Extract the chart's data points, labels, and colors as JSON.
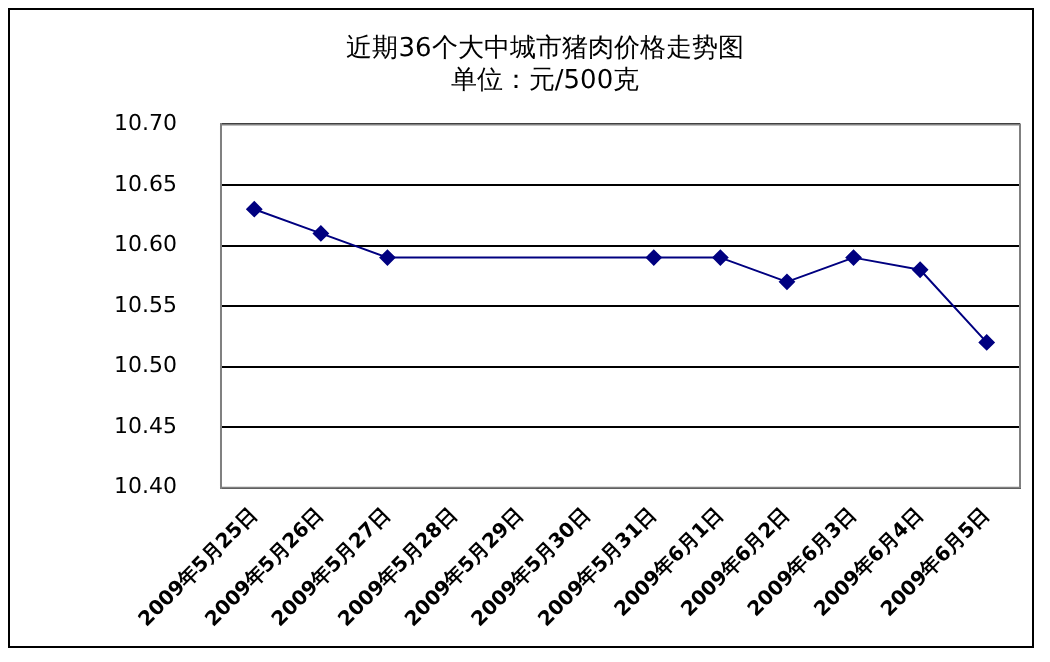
{
  "chart_data": {
    "type": "line",
    "title": "近期36个大中城市猪肉价格走势图",
    "subtitle": "单位：元/500克",
    "categories": [
      "2009年5月25日",
      "2009年5月26日",
      "2009年5月27日",
      "2009年5月28日",
      "2009年5月29日",
      "2009年5月30日",
      "2009年5月31日",
      "2009年6月1日",
      "2009年6月2日",
      "2009年6月3日",
      "2009年6月4日",
      "2009年6月5日"
    ],
    "values": [
      10.63,
      10.61,
      10.59,
      null,
      null,
      null,
      10.59,
      10.59,
      10.57,
      10.59,
      10.58,
      10.52
    ],
    "color": "#000080",
    "marker": "diamond",
    "line_style": "solid",
    "grid": "y",
    "legend": false,
    "ylim": [
      10.4,
      10.7
    ],
    "yticks": [
      {
        "value": 10.4,
        "label": "10.40"
      },
      {
        "value": 10.45,
        "label": "10.45"
      },
      {
        "value": 10.5,
        "label": "10.50"
      },
      {
        "value": 10.55,
        "label": "10.55"
      },
      {
        "value": 10.6,
        "label": "10.60"
      },
      {
        "value": 10.65,
        "label": "10.65"
      },
      {
        "value": 10.7,
        "label": "10.70"
      }
    ]
  }
}
